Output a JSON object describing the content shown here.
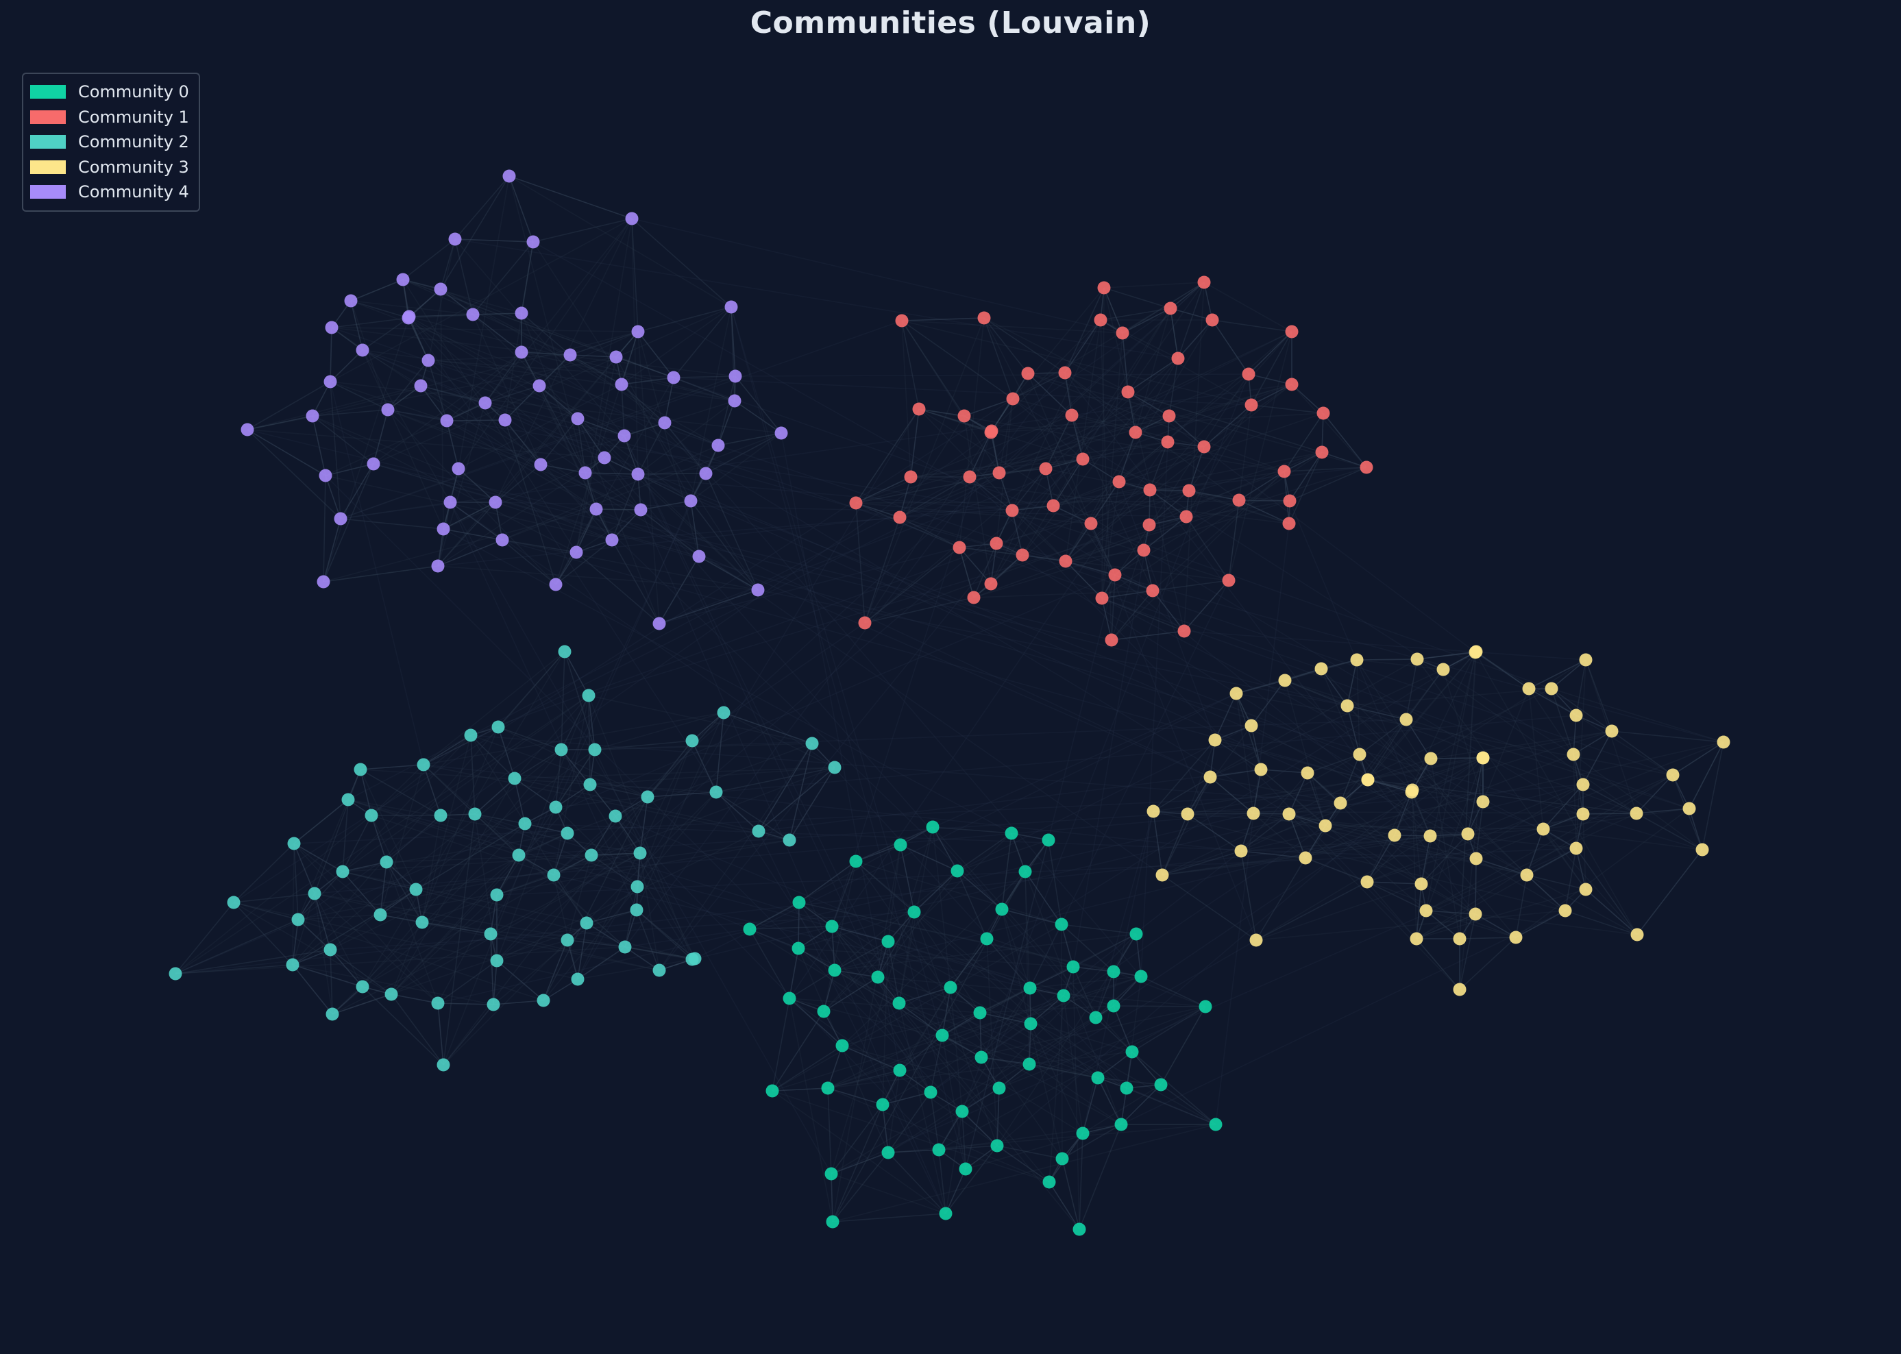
{
  "title": "Communities (Louvain)",
  "colors": {
    "background": "#0f172a",
    "edge": "#334155"
  },
  "legend": [
    {
      "label": "Community 0",
      "color": "#10d3a4"
    },
    {
      "label": "Community 1",
      "color": "#f76b6b"
    },
    {
      "label": "Community 2",
      "color": "#4fd1c5"
    },
    {
      "label": "Community 3",
      "color": "#fde68a"
    },
    {
      "label": "Community 4",
      "color": "#a78bfa"
    }
  ]
}
